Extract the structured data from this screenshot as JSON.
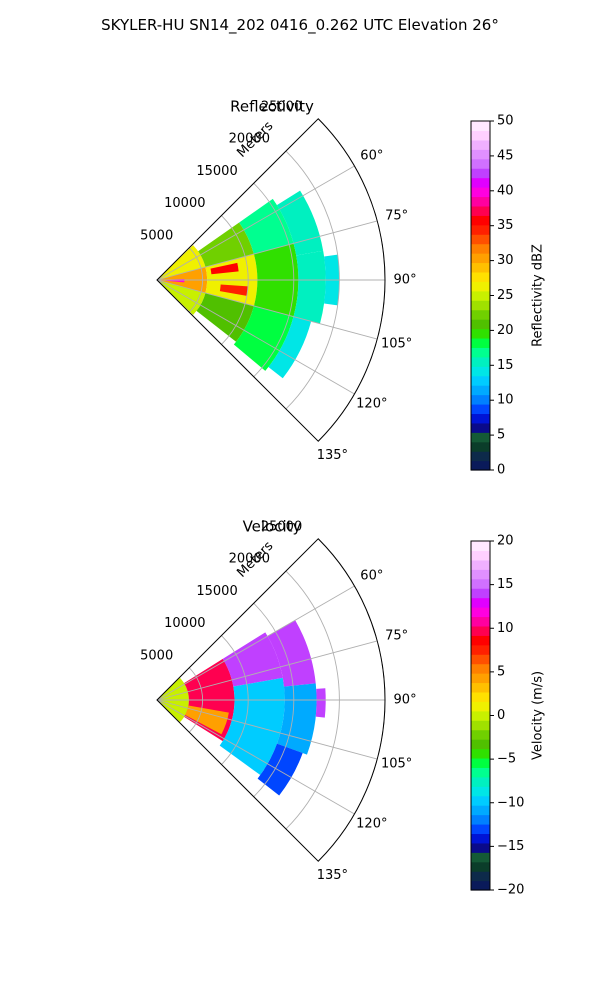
{
  "figure": {
    "suptitle": "SKYLER-HU  SN14_202  0416_0.262 UTC Elevation 26°"
  },
  "chart_data": [
    {
      "type": "heatmap",
      "projection": "polar-sector",
      "title": "Reflectivity",
      "radial_label": "Meters",
      "r_ticks": [
        5000,
        10000,
        15000,
        20000,
        25000
      ],
      "r_max": 25000,
      "theta_range_deg": [
        45,
        135
      ],
      "theta_ticks": [
        60,
        75,
        90,
        105,
        120,
        135
      ],
      "theta_tick_labels": [
        "60°",
        "75°",
        "90°",
        "105°",
        "120°",
        "135°"
      ],
      "grid": true,
      "colorbar": {
        "label": "Reflectivity dBZ",
        "vmin": 0,
        "vmax": 50,
        "ticks": [
          0,
          5,
          10,
          15,
          20,
          25,
          30,
          35,
          40,
          45,
          50
        ],
        "tick_labels": [
          "0",
          "5",
          "10",
          "15",
          "20",
          "25",
          "30",
          "35",
          "40",
          "45",
          "50"
        ],
        "colors": [
          "#0a1a5a",
          "#0d2a4a",
          "#0b3d2a",
          "#145a36",
          "#0a0a8a",
          "#0014d6",
          "#0046ff",
          "#0080ff",
          "#00aaff",
          "#00ccff",
          "#00e6e6",
          "#00f0c0",
          "#00ff90",
          "#00ff40",
          "#30e000",
          "#50c000",
          "#70d000",
          "#a0e000",
          "#c8f000",
          "#f0f000",
          "#ffe000",
          "#ffc000",
          "#ffa000",
          "#ff8000",
          "#ff5000",
          "#ff2000",
          "#ff0000",
          "#ff0050",
          "#ff00a0",
          "#ff00e0",
          "#e000ff",
          "#c040ff",
          "#d070ff",
          "#e090ff",
          "#f0b0ff",
          "#ffd0ff",
          "#ffe8ff"
        ]
      },
      "sectors": [
        {
          "az": [
            46,
            75
          ],
          "r": [
            0,
            5500
          ],
          "value": 27
        },
        {
          "az": [
            75,
            105
          ],
          "r": [
            0,
            5500
          ],
          "value": 30
        },
        {
          "az": [
            105,
            134
          ],
          "r": [
            0,
            5500
          ],
          "value": 25
        },
        {
          "az": [
            88,
            95
          ],
          "r": [
            1000,
            3000
          ],
          "value": 40
        },
        {
          "az": [
            55,
            75
          ],
          "r": [
            5500,
            11000
          ],
          "value": 22
        },
        {
          "az": [
            75,
            105
          ],
          "r": [
            5500,
            11000
          ],
          "value": 26
        },
        {
          "az": [
            105,
            128
          ],
          "r": [
            5500,
            11000
          ],
          "value": 21
        },
        {
          "az": [
            78,
            84
          ],
          "r": [
            6000,
            9000
          ],
          "value": 36
        },
        {
          "az": [
            94,
            100
          ],
          "r": [
            7000,
            10000
          ],
          "value": 34
        },
        {
          "az": [
            55,
            75
          ],
          "r": [
            11000,
            15500
          ],
          "value": 17
        },
        {
          "az": [
            75,
            105
          ],
          "r": [
            11000,
            15500
          ],
          "value": 20
        },
        {
          "az": [
            105,
            130
          ],
          "r": [
            11000,
            15500
          ],
          "value": 18
        },
        {
          "az": [
            58,
            80
          ],
          "r": [
            15500,
            18500
          ],
          "value": 15
        },
        {
          "az": [
            80,
            105
          ],
          "r": [
            15500,
            18500
          ],
          "value": 16
        },
        {
          "az": [
            105,
            128
          ],
          "r": [
            15500,
            17500
          ],
          "value": 14
        },
        {
          "az": [
            82,
            98
          ],
          "r": [
            18500,
            20000
          ],
          "value": 14
        }
      ]
    },
    {
      "type": "heatmap",
      "projection": "polar-sector",
      "title": "Velocity",
      "radial_label": "Meters",
      "r_ticks": [
        5000,
        10000,
        15000,
        20000,
        25000
      ],
      "r_max": 25000,
      "theta_range_deg": [
        45,
        135
      ],
      "theta_ticks": [
        60,
        75,
        90,
        105,
        120,
        135
      ],
      "theta_tick_labels": [
        "60°",
        "75°",
        "90°",
        "105°",
        "120°",
        "135°"
      ],
      "grid": true,
      "colorbar": {
        "label": "Velocity (m/s)",
        "vmin": -20,
        "vmax": 20,
        "ticks": [
          -20,
          -15,
          -10,
          -5,
          0,
          5,
          10,
          15,
          20
        ],
        "tick_labels": [
          "−20",
          "−15",
          "−10",
          "−5",
          "0",
          "5",
          "10",
          "15",
          "20"
        ],
        "colors": [
          "#0a1a5a",
          "#0d2a4a",
          "#0b3d2a",
          "#145a36",
          "#0a0a8a",
          "#0014d6",
          "#0046ff",
          "#0080ff",
          "#00aaff",
          "#00ccff",
          "#00e6e6",
          "#00f0c0",
          "#00ff90",
          "#00ff40",
          "#30e000",
          "#50c000",
          "#70d000",
          "#a0e000",
          "#c8f000",
          "#f0f000",
          "#ffe000",
          "#ffc000",
          "#ffa000",
          "#ff8000",
          "#ff5000",
          "#ff2000",
          "#ff0000",
          "#ff0050",
          "#ff00a0",
          "#ff00e0",
          "#e000ff",
          "#c040ff",
          "#d070ff",
          "#e090ff",
          "#f0b0ff",
          "#ffd0ff",
          "#ffe8ff"
        ]
      },
      "sectors": [
        {
          "az": [
            46,
            134
          ],
          "r": [
            0,
            3500
          ],
          "value": 0
        },
        {
          "az": [
            58,
            122
          ],
          "r": [
            3500,
            8500
          ],
          "value": 10
        },
        {
          "az": [
            100,
            118
          ],
          "r": [
            3500,
            8000
          ],
          "value": 4
        },
        {
          "az": [
            58,
            80
          ],
          "r": [
            8500,
            14000
          ],
          "value": 14
        },
        {
          "az": [
            80,
            126
          ],
          "r": [
            8500,
            14000
          ],
          "value": -10
        },
        {
          "az": [
            60,
            84
          ],
          "r": [
            14000,
            17500
          ],
          "value": 14
        },
        {
          "az": [
            84,
            110
          ],
          "r": [
            14000,
            17500
          ],
          "value": -11
        },
        {
          "az": [
            110,
            128
          ],
          "r": [
            14000,
            17000
          ],
          "value": -13
        },
        {
          "az": [
            86,
            96
          ],
          "r": [
            17500,
            18500
          ],
          "value": 14
        }
      ]
    }
  ]
}
